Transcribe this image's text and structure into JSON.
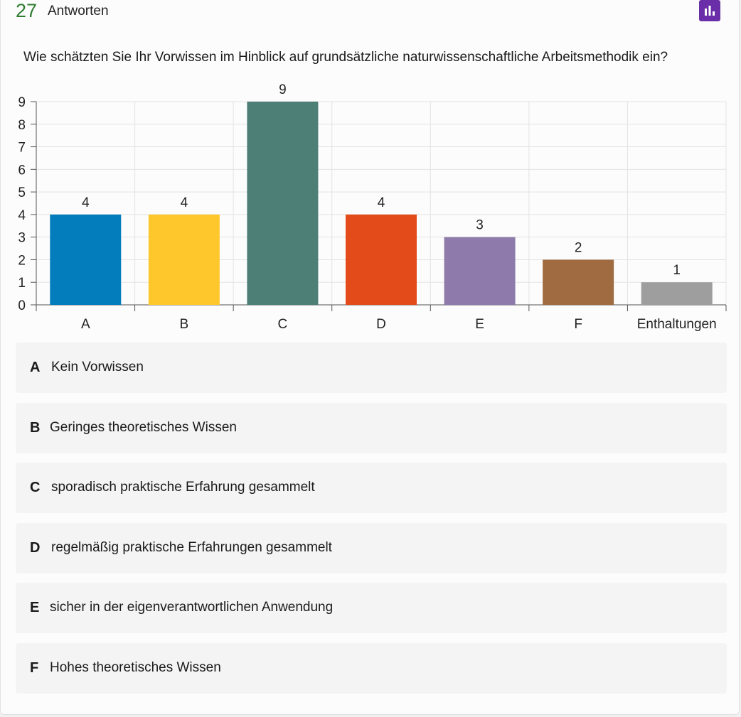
{
  "header": {
    "count": "27",
    "count_label": "Antworten",
    "chart_icon": "bar-chart-icon",
    "chart_button_color": "#6a2fa8",
    "count_color": "#2f7d32"
  },
  "question": "Wie schätzten Sie Ihr Vorwissen im Hinblick auf grundsätzliche naturwissenschaftliche Arbeitsmethodik ein?",
  "chart_data": {
    "type": "bar",
    "categories": [
      "A",
      "B",
      "C",
      "D",
      "E",
      "F",
      "Enthaltungen"
    ],
    "values": [
      4,
      4,
      9,
      4,
      3,
      2,
      1
    ],
    "colors": [
      "#037dbc",
      "#fec82c",
      "#4d7f77",
      "#e34c1a",
      "#8e7aab",
      "#a06b40",
      "#9e9e9e"
    ],
    "ylim": [
      0,
      9
    ],
    "yticks": [
      0,
      1,
      2,
      3,
      4,
      5,
      6,
      7,
      8,
      9
    ],
    "data_labels": true,
    "grid": true,
    "xlabel": "",
    "ylabel": ""
  },
  "legend": [
    {
      "key": "A",
      "text": "Kein Vorwissen"
    },
    {
      "key": "B",
      "text": "Geringes theoretisches Wissen"
    },
    {
      "key": "C",
      "text": "sporadisch praktische Erfahrung gesammelt"
    },
    {
      "key": "D",
      "text": "regelmäßig praktische Erfahrungen gesammelt"
    },
    {
      "key": "E",
      "text": "sicher in der eigenverantwortlichen Anwendung"
    },
    {
      "key": "F",
      "text": "Hohes theoretisches Wissen"
    }
  ]
}
